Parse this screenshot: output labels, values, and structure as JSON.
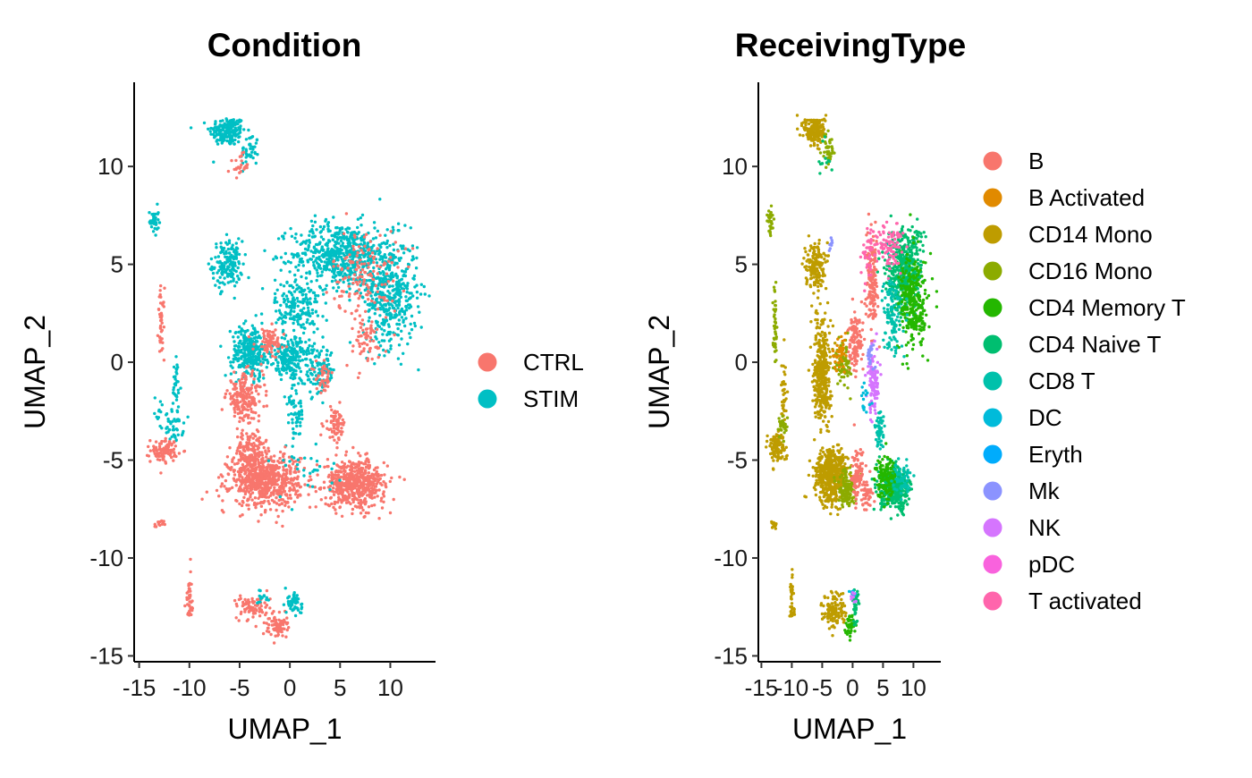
{
  "chart_data": [
    {
      "type": "scatter",
      "title": "Condition",
      "xlabel": "UMAP_1",
      "ylabel": "UMAP_2",
      "xlim": [
        -15.5,
        14.5
      ],
      "ylim": [
        -15.3,
        14.3
      ],
      "x_ticks": [
        -15,
        -10,
        -5,
        0,
        5,
        10
      ],
      "y_ticks": [
        -15,
        -10,
        -5,
        0,
        5,
        10
      ],
      "x_tick_labels": [
        "-15",
        "-10",
        "-5",
        "0",
        "5",
        "10"
      ],
      "y_tick_labels": [
        "-15",
        "-10",
        "-5",
        "0",
        "5",
        "10"
      ],
      "grid": false,
      "legend_position": "right",
      "series": [
        {
          "name": "CTRL",
          "color": "#F8766D"
        },
        {
          "name": "STIM",
          "color": "#00BFC4"
        }
      ],
      "clusters": [
        {
          "series": "STIM",
          "x": -6.2,
          "y": 11.8,
          "sx": 1.2,
          "sy": 0.5,
          "n": 180
        },
        {
          "series": "STIM",
          "x": -4.0,
          "y": 10.8,
          "sx": 0.6,
          "sy": 0.6,
          "n": 40
        },
        {
          "series": "CTRL",
          "x": -5.0,
          "y": 10.0,
          "sx": 0.6,
          "sy": 0.4,
          "n": 25
        },
        {
          "series": "STIM",
          "x": -13.5,
          "y": 7.2,
          "sx": 0.3,
          "sy": 0.5,
          "n": 35
        },
        {
          "series": "STIM",
          "x": -6.2,
          "y": 5.0,
          "sx": 1.0,
          "sy": 0.8,
          "n": 160
        },
        {
          "series": "CTRL",
          "x": -12.8,
          "y": 2.0,
          "sx": 0.2,
          "sy": 1.2,
          "n": 45
        },
        {
          "series": "STIM",
          "x": -11.3,
          "y": -1.5,
          "sx": 0.3,
          "sy": 1.2,
          "n": 35
        },
        {
          "series": "STIM",
          "x": -11.5,
          "y": -3.3,
          "sx": 0.6,
          "sy": 0.5,
          "n": 40
        },
        {
          "series": "CTRL",
          "x": -12.5,
          "y": -4.5,
          "sx": 0.9,
          "sy": 0.4,
          "n": 90
        },
        {
          "series": "STIM",
          "x": -13.0,
          "y": -2.5,
          "sx": 0.3,
          "sy": 0.6,
          "n": 12
        },
        {
          "series": "CTRL",
          "x": -13.0,
          "y": -8.3,
          "sx": 0.3,
          "sy": 0.15,
          "n": 14
        },
        {
          "series": "STIM",
          "x": 5.0,
          "y": 5.5,
          "sx": 3.2,
          "sy": 1.1,
          "n": 600
        },
        {
          "series": "STIM",
          "x": 10.0,
          "y": 3.5,
          "sx": 1.8,
          "sy": 1.8,
          "n": 450
        },
        {
          "series": "STIM",
          "x": 0.8,
          "y": 2.8,
          "sx": 1.5,
          "sy": 1.0,
          "n": 180
        },
        {
          "series": "CTRL",
          "x": 7.5,
          "y": 4.5,
          "sx": 2.2,
          "sy": 1.5,
          "n": 150
        },
        {
          "series": "CTRL",
          "x": 7.5,
          "y": 1.0,
          "sx": 1.4,
          "sy": 0.9,
          "n": 60
        },
        {
          "series": "STIM",
          "x": -4.0,
          "y": 0.5,
          "sx": 1.2,
          "sy": 0.9,
          "n": 300
        },
        {
          "series": "STIM",
          "x": 0.0,
          "y": 0.3,
          "sx": 1.3,
          "sy": 0.6,
          "n": 200
        },
        {
          "series": "CTRL",
          "x": -2.0,
          "y": 1.0,
          "sx": 1.0,
          "sy": 0.5,
          "n": 80
        },
        {
          "series": "CTRL",
          "x": -4.5,
          "y": -1.8,
          "sx": 1.2,
          "sy": 0.8,
          "n": 200
        },
        {
          "series": "STIM",
          "x": 0.5,
          "y": -2.5,
          "sx": 0.6,
          "sy": 1.3,
          "n": 70
        },
        {
          "series": "STIM",
          "x": 3.0,
          "y": -0.5,
          "sx": 1.0,
          "sy": 0.8,
          "n": 100
        },
        {
          "series": "CTRL",
          "x": 3.5,
          "y": -0.8,
          "sx": 0.6,
          "sy": 0.5,
          "n": 40
        },
        {
          "series": "CTRL",
          "x": 4.5,
          "y": -3.2,
          "sx": 0.7,
          "sy": 0.6,
          "n": 70
        },
        {
          "series": "CTRL",
          "x": -2.5,
          "y": -6.0,
          "sx": 2.3,
          "sy": 0.9,
          "n": 700
        },
        {
          "series": "CTRL",
          "x": 6.5,
          "y": -6.2,
          "sx": 2.0,
          "sy": 0.8,
          "n": 550
        },
        {
          "series": "CTRL",
          "x": -4.0,
          "y": -4.5,
          "sx": 1.0,
          "sy": 0.6,
          "n": 120
        },
        {
          "series": "STIM",
          "x": 1.0,
          "y": -5.5,
          "sx": 2.5,
          "sy": 1.0,
          "n": 30
        },
        {
          "series": "CTRL",
          "x": -10.0,
          "y": -11.8,
          "sx": 0.2,
          "sy": 0.7,
          "n": 25
        },
        {
          "series": "CTRL",
          "x": -10.0,
          "y": -12.7,
          "sx": 0.3,
          "sy": 0.3,
          "n": 15
        },
        {
          "series": "CTRL",
          "x": -3.5,
          "y": -12.5,
          "sx": 1.2,
          "sy": 0.4,
          "n": 80
        },
        {
          "series": "CTRL",
          "x": -1.5,
          "y": -13.5,
          "sx": 0.8,
          "sy": 0.4,
          "n": 70
        },
        {
          "series": "STIM",
          "x": 0.5,
          "y": -12.3,
          "sx": 0.5,
          "sy": 0.5,
          "n": 50
        },
        {
          "series": "STIM",
          "x": -2.5,
          "y": -12.0,
          "sx": 0.4,
          "sy": 0.2,
          "n": 15
        }
      ]
    },
    {
      "type": "scatter",
      "title": "ReceivingType",
      "xlabel": "UMAP_1",
      "ylabel": "UMAP_2",
      "xlim": [
        -15.5,
        14.5
      ],
      "ylim": [
        -15.3,
        14.3
      ],
      "x_ticks": [
        -15,
        -10,
        -5,
        0,
        5,
        10
      ],
      "y_ticks": [
        -15,
        -10,
        -5,
        0,
        5,
        10
      ],
      "x_tick_labels": [
        "-15",
        "-10",
        "-5",
        "0",
        "5",
        "10"
      ],
      "y_tick_labels": [
        "-15",
        "-10",
        "-5",
        "0",
        "5",
        "10"
      ],
      "grid": false,
      "legend_position": "right",
      "series": [
        {
          "name": "B",
          "color": "#F8766D"
        },
        {
          "name": "B Activated",
          "color": "#E18A00"
        },
        {
          "name": "CD14 Mono",
          "color": "#BE9C00"
        },
        {
          "name": "CD16 Mono",
          "color": "#8CAB00"
        },
        {
          "name": "CD4 Memory T",
          "color": "#24B700"
        },
        {
          "name": "CD4 Naive T",
          "color": "#00BE70"
        },
        {
          "name": "CD8 T",
          "color": "#00C1AB"
        },
        {
          "name": "DC",
          "color": "#00BBDA"
        },
        {
          "name": "Eryth",
          "color": "#00ACFC"
        },
        {
          "name": "Mk",
          "color": "#8B93FF"
        },
        {
          "name": "NK",
          "color": "#D575FE"
        },
        {
          "name": "pDC",
          "color": "#F962DD"
        },
        {
          "name": "T activated",
          "color": "#FF65AC"
        }
      ],
      "clusters": [
        {
          "series": "CD14 Mono",
          "x": -6.2,
          "y": 11.8,
          "sx": 1.2,
          "sy": 0.5,
          "n": 180
        },
        {
          "series": "CD16 Mono",
          "x": -4.0,
          "y": 10.8,
          "sx": 0.6,
          "sy": 0.6,
          "n": 40
        },
        {
          "series": "CD4 Naive T",
          "x": -4.5,
          "y": 10.5,
          "sx": 0.8,
          "sy": 0.6,
          "n": 12
        },
        {
          "series": "CD16 Mono",
          "x": -13.5,
          "y": 7.2,
          "sx": 0.3,
          "sy": 0.5,
          "n": 35
        },
        {
          "series": "CD14 Mono",
          "x": -6.2,
          "y": 5.0,
          "sx": 1.0,
          "sy": 0.8,
          "n": 160
        },
        {
          "series": "Mk",
          "x": -3.5,
          "y": 6.0,
          "sx": 0.3,
          "sy": 0.3,
          "n": 8
        },
        {
          "series": "CD16 Mono",
          "x": -12.8,
          "y": 2.0,
          "sx": 0.2,
          "sy": 1.2,
          "n": 45
        },
        {
          "series": "CD14 Mono",
          "x": -11.3,
          "y": -1.5,
          "sx": 0.3,
          "sy": 1.2,
          "n": 35
        },
        {
          "series": "CD14 Mono",
          "x": -12.5,
          "y": -4.3,
          "sx": 1.0,
          "sy": 0.5,
          "n": 110
        },
        {
          "series": "CD16 Mono",
          "x": -11.5,
          "y": -3.3,
          "sx": 0.6,
          "sy": 0.5,
          "n": 30
        },
        {
          "series": "CD14 Mono",
          "x": -13.0,
          "y": -8.3,
          "sx": 0.3,
          "sy": 0.15,
          "n": 14
        },
        {
          "series": "CD4 Naive T",
          "x": 8.5,
          "y": 4.8,
          "sx": 2.0,
          "sy": 1.4,
          "n": 450
        },
        {
          "series": "CD4 Memory T",
          "x": 10.0,
          "y": 3.0,
          "sx": 1.6,
          "sy": 1.6,
          "n": 300
        },
        {
          "series": "CD8 T",
          "x": 6.5,
          "y": 2.5,
          "sx": 1.0,
          "sy": 1.4,
          "n": 120
        },
        {
          "series": "T activated",
          "x": 6.0,
          "y": 6.0,
          "sx": 1.5,
          "sy": 0.8,
          "n": 90
        },
        {
          "series": "B",
          "x": 3.2,
          "y": 4.0,
          "sx": 0.6,
          "sy": 1.5,
          "n": 150
        },
        {
          "series": "B",
          "x": 0.5,
          "y": 1.0,
          "sx": 0.8,
          "sy": 1.0,
          "n": 130
        },
        {
          "series": "T activated",
          "x": 2.5,
          "y": 5.5,
          "sx": 0.8,
          "sy": 0.8,
          "n": 40
        },
        {
          "series": "CD14 Mono",
          "x": -5.0,
          "y": -0.5,
          "sx": 0.9,
          "sy": 1.8,
          "n": 380
        },
        {
          "series": "CD16 Mono",
          "x": -1.5,
          "y": 0.0,
          "sx": 0.8,
          "sy": 0.8,
          "n": 80
        },
        {
          "series": "B Activated",
          "x": -2.0,
          "y": 0.5,
          "sx": 0.7,
          "sy": 0.6,
          "n": 40
        },
        {
          "series": "NK",
          "x": 3.5,
          "y": -1.0,
          "sx": 0.7,
          "sy": 1.2,
          "n": 110
        },
        {
          "series": "Mk",
          "x": 3.0,
          "y": 0.5,
          "sx": 0.4,
          "sy": 0.4,
          "n": 20
        },
        {
          "series": "CD8 T",
          "x": 4.5,
          "y": -3.5,
          "sx": 0.5,
          "sy": 0.7,
          "n": 50
        },
        {
          "series": "DC",
          "x": 2.0,
          "y": -2.0,
          "sx": 0.6,
          "sy": 0.6,
          "n": 15
        },
        {
          "series": "CD14 Mono",
          "x": -3.5,
          "y": -5.8,
          "sx": 1.8,
          "sy": 0.9,
          "n": 550
        },
        {
          "series": "CD16 Mono",
          "x": -1.0,
          "y": -6.5,
          "sx": 1.0,
          "sy": 0.6,
          "n": 120
        },
        {
          "series": "B",
          "x": 0.8,
          "y": -5.8,
          "sx": 0.6,
          "sy": 0.9,
          "n": 90
        },
        {
          "series": "CD4 Naive T",
          "x": 7.0,
          "y": -6.5,
          "sx": 1.6,
          "sy": 0.7,
          "n": 380
        },
        {
          "series": "CD4 Memory T",
          "x": 5.5,
          "y": -5.8,
          "sx": 1.2,
          "sy": 0.7,
          "n": 150
        },
        {
          "series": "CD8 T",
          "x": 8.0,
          "y": -6.0,
          "sx": 1.0,
          "sy": 0.6,
          "n": 60
        },
        {
          "series": "B",
          "x": 2.5,
          "y": -6.8,
          "sx": 0.6,
          "sy": 0.5,
          "n": 40
        },
        {
          "series": "CD14 Mono",
          "x": -10.0,
          "y": -11.8,
          "sx": 0.2,
          "sy": 0.7,
          "n": 25
        },
        {
          "series": "CD14 Mono",
          "x": -10.0,
          "y": -12.7,
          "sx": 0.3,
          "sy": 0.3,
          "n": 15
        },
        {
          "series": "CD14 Mono",
          "x": -3.0,
          "y": -12.7,
          "sx": 1.3,
          "sy": 0.6,
          "n": 130
        },
        {
          "series": "CD4 Memory T",
          "x": -0.5,
          "y": -13.5,
          "sx": 0.5,
          "sy": 0.4,
          "n": 40
        },
        {
          "series": "CD4 Naive T",
          "x": 0.5,
          "y": -12.5,
          "sx": 0.5,
          "sy": 0.5,
          "n": 40
        },
        {
          "series": "DC",
          "x": 0.0,
          "y": -11.8,
          "sx": 0.3,
          "sy": 0.2,
          "n": 8
        },
        {
          "series": "NK",
          "x": 0.0,
          "y": -12.0,
          "sx": 0.3,
          "sy": 0.3,
          "n": 8
        }
      ]
    }
  ]
}
